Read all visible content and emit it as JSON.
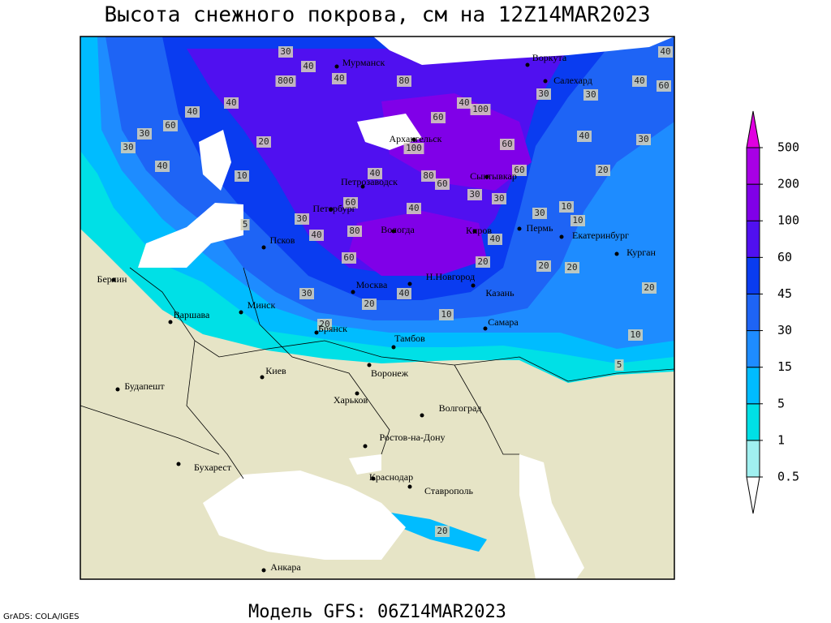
{
  "header": {
    "title": "Высота снежного покрова, см на 12Z14MAR2023"
  },
  "footer": {
    "model": "Модель GFS: 06Z14MAR2023",
    "credit": "GrADS: COLA/IGES"
  },
  "colorbar": {
    "levels": [
      0.5,
      1,
      5,
      15,
      30,
      45,
      60,
      100,
      200,
      500
    ],
    "colors": [
      "#a0f0f0",
      "#00e0e6",
      "#00bcff",
      "#1e8cff",
      "#1e64f5",
      "#0a3cf0",
      "#5010f0",
      "#8000e8",
      "#a800e6"
    ],
    "over_color": "#e000e0",
    "under_color": "#ffffff"
  },
  "cities": [
    "Мурманск",
    "Воркута",
    "Салехард",
    "Архангельск",
    "Сыктывкар",
    "Петрозаводск",
    "Петербург",
    "Псков",
    "Вологда",
    "Киров",
    "Пермь",
    "Екатеринбург",
    "Курган",
    "Берлин",
    "Варшава",
    "Минск",
    "Москва",
    "Н.Новгород",
    "Казань",
    "Брянск",
    "Тамбов",
    "Самара",
    "Воронеж",
    "Киев",
    "Харьков",
    "Волгоград",
    "Будапешт",
    "Ростов-на-Дону",
    "Бухарест",
    "Краснодар",
    "Ставрополь",
    "Анкара"
  ],
  "contour_labels": [
    30,
    40,
    800,
    40,
    40,
    60,
    30,
    30,
    40,
    20,
    10,
    40,
    80,
    100,
    40,
    60,
    100,
    40,
    80,
    60,
    30,
    30,
    60,
    60,
    40,
    30,
    40,
    60,
    30,
    30,
    20,
    10,
    10,
    30,
    20,
    20,
    20,
    10,
    5,
    5,
    30,
    60,
    40,
    80,
    40,
    60,
    30,
    20,
    40,
    10,
    20,
    40,
    20,
    40,
    20
  ]
}
